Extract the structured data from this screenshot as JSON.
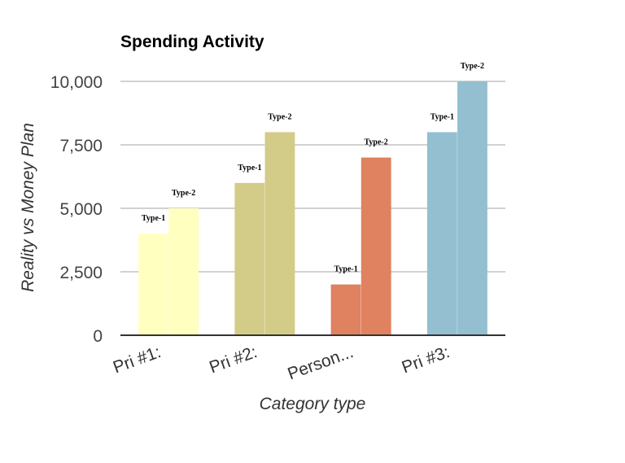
{
  "chart_data": {
    "type": "bar",
    "title": "Spending Activity",
    "xlabel": "Category type",
    "ylabel": "Reality vs Money Plan",
    "ylim": [
      0,
      10000
    ],
    "yticks": [
      0,
      2500,
      5000,
      7500,
      10000
    ],
    "ytick_labels": [
      "0",
      "2,500",
      "5,000",
      "7,500",
      "10,000"
    ],
    "categories": [
      "Pri #1:",
      "Pri #2:",
      "Person...",
      "Pri #3:"
    ],
    "category_colors": [
      "#ffffc0",
      "#d3cb88",
      "#e08160",
      "#93bfd1"
    ],
    "series": [
      {
        "label": "Type-1",
        "values": [
          4000,
          6000,
          2000,
          8000
        ]
      },
      {
        "label": "Type-2",
        "values": [
          5000,
          8000,
          7000,
          10000
        ]
      }
    ],
    "grid": true,
    "legend": "none"
  }
}
